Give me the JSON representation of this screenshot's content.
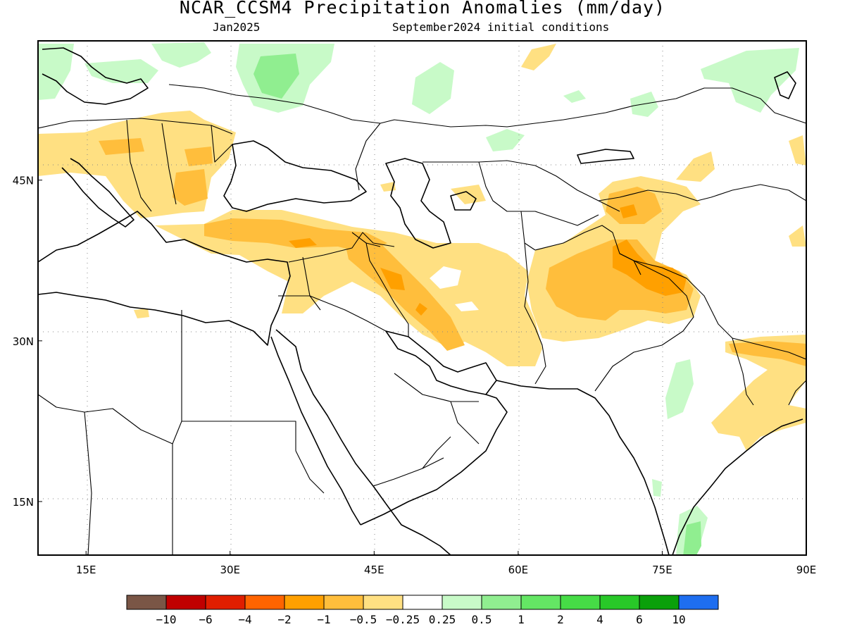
{
  "title": "NCAR_CCSM4 Precipitation Anomalies (mm/day)",
  "subtitle_left": "Jan2025",
  "subtitle_right": "September2024 initial conditions",
  "map": {
    "lon_range": [
      10,
      90
    ],
    "lat_range": [
      10,
      58
    ],
    "lon_ticks": [
      {
        "value": 15,
        "label": "15E"
      },
      {
        "value": 30,
        "label": "30E"
      },
      {
        "value": 45,
        "label": "45E"
      },
      {
        "value": 60,
        "label": "60E"
      },
      {
        "value": 75,
        "label": "75E"
      },
      {
        "value": 90,
        "label": "90E"
      }
    ],
    "lat_ticks": [
      {
        "value": 45,
        "label": "45N"
      },
      {
        "value": 30,
        "label": "30N"
      },
      {
        "value": 15,
        "label": "15N"
      }
    ],
    "gridlines": "dotted"
  },
  "legend": {
    "colors": [
      "#7a5646",
      "#c00000",
      "#e01e00",
      "#ff6400",
      "#ffa000",
      "#ffbe3c",
      "#ffe082",
      "#ffffff",
      "#c8fac8",
      "#90ee90",
      "#64e664",
      "#46dc46",
      "#28c828",
      "#0aa00a",
      "#1e6ef0"
    ],
    "labels": [
      "−10",
      "−6",
      "−4",
      "−2",
      "−1",
      "−0.5",
      "−0.25",
      "0.25",
      "0.5",
      "1",
      "2",
      "4",
      "6",
      "10"
    ]
  },
  "anomaly_colors": {
    "dry_light": "#ffe082",
    "dry_medium": "#ffbe3c",
    "dry_strong": "#ffa000",
    "wet_light": "#c8fac8",
    "wet_medium": "#90ee90"
  }
}
